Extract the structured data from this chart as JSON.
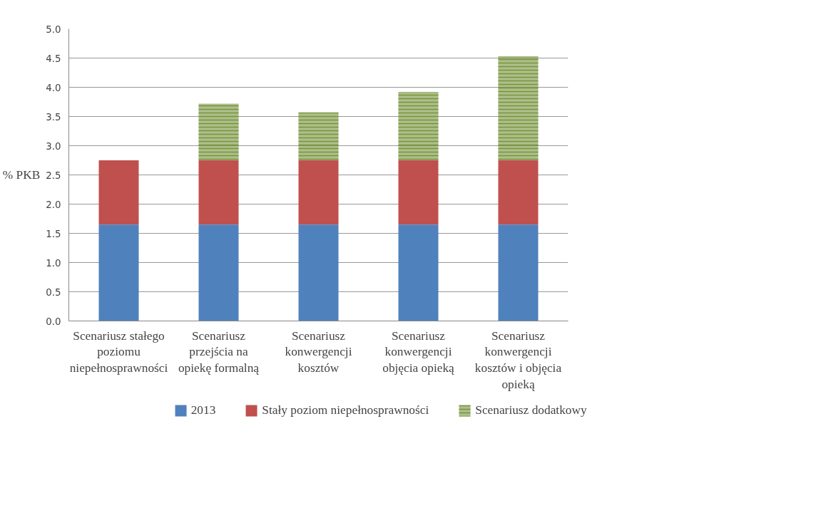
{
  "chart_data": {
    "type": "bar",
    "stacked": true,
    "ylabel": "% PKB",
    "categories": [
      "Scenariusz stałego poziomu niepełnosprawności",
      "Scenariusz przejścia na opiekę formalną",
      "Scenariusz konwergencji kosztów",
      "Scenariusz konwergencji objęcia opieką",
      "Scenariusz konwergencji kosztów i objęcia opieką"
    ],
    "series": [
      {
        "name": "2013",
        "color": "#4f81bd",
        "values": [
          1.65,
          1.65,
          1.65,
          1.65,
          1.65
        ]
      },
      {
        "name": "Stały poziom niepełnosprawności",
        "color": "#c0504d",
        "values": [
          1.1,
          1.1,
          1.1,
          1.1,
          1.1
        ]
      },
      {
        "name": "Scenariusz dodatkowy",
        "color": "#77933c",
        "values": [
          null,
          0.97,
          0.82,
          1.17,
          1.78
        ]
      }
    ],
    "ylim": [
      0,
      5
    ],
    "yticks": [
      {
        "value": 0,
        "label": "0.0"
      },
      0.5,
      {
        "value": 1,
        "label": "1.0"
      },
      1.5,
      {
        "value": 2,
        "label": "2.0"
      },
      2.5,
      {
        "value": 3,
        "label": "3.0"
      },
      3.5,
      {
        "value": 4,
        "label": "4.0"
      },
      4.5,
      {
        "value": 5,
        "label": "5.0"
      }
    ],
    "grid": "y",
    "legend": "bottom"
  }
}
